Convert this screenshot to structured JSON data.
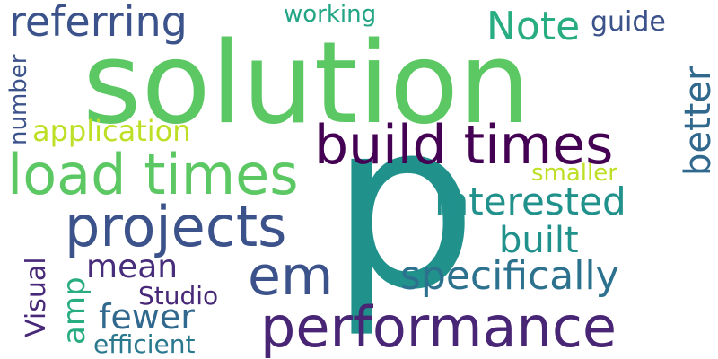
{
  "words": {
    "solution": {
      "text": "solution",
      "color": "#5cc863"
    },
    "p": {
      "text": "p",
      "color": "#21918c"
    },
    "build_times": {
      "text": "build times",
      "color": "#440154"
    },
    "load_times": {
      "text": "load times",
      "color": "#5cc863"
    },
    "performance": {
      "text": "performance",
      "color": "#482575"
    },
    "projects": {
      "text": "projects",
      "color": "#3b528b"
    },
    "referring": {
      "text": "referring",
      "color": "#3b528b"
    },
    "specifically": {
      "text": "specifically",
      "color": "#2c728e"
    },
    "interested": {
      "text": "interested",
      "color": "#21918c"
    },
    "em": {
      "text": "em",
      "color": "#3b528b"
    },
    "built": {
      "text": "built",
      "color": "#21918c"
    },
    "Note": {
      "text": "Note",
      "color": "#27ad81"
    },
    "better": {
      "text": "better",
      "color": "#31688e"
    },
    "mean": {
      "text": "mean",
      "color": "#472d7b"
    },
    "fewer": {
      "text": "fewer",
      "color": "#31688e"
    },
    "working": {
      "text": "working",
      "color": "#21a585"
    },
    "guide": {
      "text": "guide",
      "color": "#3b528b"
    },
    "application": {
      "text": "application",
      "color": "#bddf26"
    },
    "smaller": {
      "text": "smaller",
      "color": "#bddf26"
    },
    "Studio": {
      "text": "Studio",
      "color": "#482878"
    },
    "efficient": {
      "text": "efficient",
      "color": "#2a788e"
    },
    "number": {
      "text": "number",
      "color": "#3b528b"
    },
    "Visual": {
      "text": "Visual",
      "color": "#482878"
    },
    "amp": {
      "text": "amp",
      "color": "#27ad81"
    }
  }
}
